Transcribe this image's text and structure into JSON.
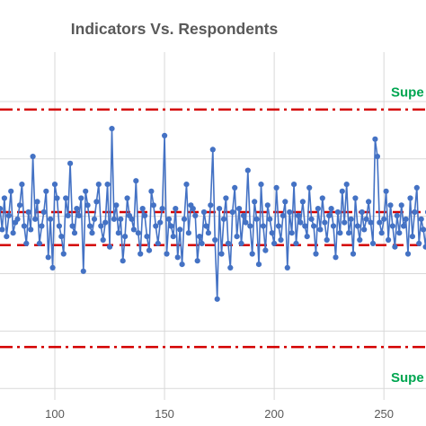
{
  "chart_data": {
    "type": "line",
    "title": "Indicators Vs. Respondents",
    "xlabel": "",
    "ylabel": "",
    "xlim": [
      75,
      270
    ],
    "ylim": [
      0,
      100
    ],
    "x_ticks": [
      100,
      150,
      200,
      250
    ],
    "x_tick_labels": [
      "100",
      "150",
      "200",
      "250"
    ],
    "y_gridlines": [
      3.3,
      19.8,
      36.3,
      52.8,
      69.3,
      85.8
    ],
    "grid": true,
    "legend": "none",
    "colors": {
      "series": "#4472c4",
      "limit_line": "#d40000",
      "annotation": "#00a651",
      "grid": "#d9d9d9"
    },
    "reference_lines": [
      {
        "name": "upper-outer",
        "y": 83.5,
        "style": "dash-dot"
      },
      {
        "name": "upper-inner",
        "y": 54.0,
        "style": "dashed"
      },
      {
        "name": "lower-inner",
        "y": 44.5,
        "style": "dashed"
      },
      {
        "name": "lower-outer",
        "y": 15.2,
        "style": "dash-dot"
      }
    ],
    "annotations": [
      {
        "name": "upper",
        "text": "Supe",
        "y": 88.5
      },
      {
        "name": "lower",
        "text": "Supe",
        "y": 6.5
      }
    ],
    "series": [
      {
        "values": [
          [
            75,
            55
          ],
          [
            76,
            49
          ],
          [
            77,
            58
          ],
          [
            78,
            47
          ],
          [
            79,
            53
          ],
          [
            80,
            60
          ],
          [
            81,
            48
          ],
          [
            82,
            51
          ],
          [
            83,
            52
          ],
          [
            84,
            56
          ],
          [
            85,
            62
          ],
          [
            86,
            50
          ],
          [
            87,
            45
          ],
          [
            88,
            54
          ],
          [
            89,
            49
          ],
          [
            90,
            70
          ],
          [
            91,
            52
          ],
          [
            92,
            57
          ],
          [
            93,
            45
          ],
          [
            94,
            50
          ],
          [
            95,
            54
          ],
          [
            96,
            60
          ],
          [
            97,
            41
          ],
          [
            98,
            52
          ],
          [
            99,
            38
          ],
          [
            100,
            62
          ],
          [
            101,
            58
          ],
          [
            102,
            50
          ],
          [
            103,
            47
          ],
          [
            104,
            42
          ],
          [
            105,
            58
          ],
          [
            106,
            53
          ],
          [
            107,
            68
          ],
          [
            108,
            50
          ],
          [
            109,
            48
          ],
          [
            110,
            55
          ],
          [
            111,
            53
          ],
          [
            112,
            58
          ],
          [
            113,
            37
          ],
          [
            114,
            60
          ],
          [
            115,
            56
          ],
          [
            116,
            50
          ],
          [
            117,
            48
          ],
          [
            118,
            52
          ],
          [
            119,
            57
          ],
          [
            120,
            62
          ],
          [
            121,
            50
          ],
          [
            122,
            46
          ],
          [
            123,
            51
          ],
          [
            124,
            62
          ],
          [
            125,
            44
          ],
          [
            126,
            78
          ],
          [
            127,
            52
          ],
          [
            128,
            56
          ],
          [
            129,
            48
          ],
          [
            130,
            52
          ],
          [
            131,
            40
          ],
          [
            132,
            47
          ],
          [
            133,
            58
          ],
          [
            134,
            53
          ],
          [
            135,
            52
          ],
          [
            136,
            49
          ],
          [
            137,
            63
          ],
          [
            138,
            48
          ],
          [
            139,
            42
          ],
          [
            140,
            55
          ],
          [
            141,
            53
          ],
          [
            142,
            47
          ],
          [
            143,
            43
          ],
          [
            144,
            60
          ],
          [
            145,
            56
          ],
          [
            146,
            50
          ],
          [
            147,
            45
          ],
          [
            148,
            51
          ],
          [
            149,
            55
          ],
          [
            150,
            76
          ],
          [
            151,
            42
          ],
          [
            152,
            52
          ],
          [
            153,
            50
          ],
          [
            154,
            47
          ],
          [
            155,
            55
          ],
          [
            156,
            41
          ],
          [
            157,
            49
          ],
          [
            158,
            39
          ],
          [
            159,
            52
          ],
          [
            160,
            62
          ],
          [
            161,
            48
          ],
          [
            162,
            56
          ],
          [
            163,
            55
          ],
          [
            164,
            53
          ],
          [
            165,
            40
          ],
          [
            166,
            47
          ],
          [
            167,
            45
          ],
          [
            168,
            54
          ],
          [
            169,
            50
          ],
          [
            170,
            48
          ],
          [
            171,
            56
          ],
          [
            172,
            72
          ],
          [
            173,
            46
          ],
          [
            174,
            29
          ],
          [
            175,
            55
          ],
          [
            176,
            42
          ],
          [
            177,
            52
          ],
          [
            178,
            58
          ],
          [
            179,
            45
          ],
          [
            180,
            38
          ],
          [
            181,
            54
          ],
          [
            182,
            61
          ],
          [
            183,
            47
          ],
          [
            184,
            55
          ],
          [
            185,
            45
          ],
          [
            186,
            53
          ],
          [
            187,
            51
          ],
          [
            188,
            66
          ],
          [
            189,
            50
          ],
          [
            190,
            42
          ],
          [
            191,
            57
          ],
          [
            192,
            52
          ],
          [
            193,
            39
          ],
          [
            194,
            62
          ],
          [
            195,
            50
          ],
          [
            196,
            43
          ],
          [
            197,
            56
          ],
          [
            198,
            52
          ],
          [
            199,
            48
          ],
          [
            200,
            45
          ],
          [
            201,
            61
          ],
          [
            202,
            50
          ],
          [
            203,
            46
          ],
          [
            204,
            53
          ],
          [
            205,
            57
          ],
          [
            206,
            38
          ],
          [
            207,
            54
          ],
          [
            208,
            48
          ],
          [
            209,
            62
          ],
          [
            210,
            45
          ],
          [
            211,
            53
          ],
          [
            212,
            51
          ],
          [
            213,
            57
          ],
          [
            214,
            50
          ],
          [
            215,
            47
          ],
          [
            216,
            61
          ],
          [
            217,
            52
          ],
          [
            218,
            50
          ],
          [
            219,
            42
          ],
          [
            220,
            55
          ],
          [
            221,
            49
          ],
          [
            222,
            58
          ],
          [
            223,
            51
          ],
          [
            224,
            46
          ],
          [
            225,
            53
          ],
          [
            226,
            55
          ],
          [
            227,
            50
          ],
          [
            228,
            41
          ],
          [
            229,
            54
          ],
          [
            230,
            48
          ],
          [
            231,
            60
          ],
          [
            232,
            51
          ],
          [
            233,
            62
          ],
          [
            234,
            48
          ],
          [
            235,
            52
          ],
          [
            236,
            42
          ],
          [
            237,
            58
          ],
          [
            238,
            50
          ],
          [
            239,
            46
          ],
          [
            240,
            54
          ],
          [
            241,
            49
          ],
          [
            242,
            52
          ],
          [
            243,
            57
          ],
          [
            244,
            51
          ],
          [
            245,
            45
          ],
          [
            246,
            75
          ],
          [
            247,
            70
          ],
          [
            248,
            51
          ],
          [
            249,
            48
          ],
          [
            250,
            52
          ],
          [
            251,
            60
          ],
          [
            252,
            46
          ],
          [
            253,
            56
          ],
          [
            254,
            50
          ],
          [
            255,
            44
          ],
          [
            256,
            53
          ],
          [
            257,
            48
          ],
          [
            258,
            56
          ],
          [
            259,
            50
          ],
          [
            260,
            52
          ],
          [
            261,
            42
          ],
          [
            262,
            58
          ],
          [
            263,
            47
          ],
          [
            264,
            54
          ],
          [
            265,
            61
          ],
          [
            266,
            45
          ],
          [
            267,
            52
          ],
          [
            268,
            49
          ],
          [
            269,
            44
          ],
          [
            270,
            54
          ]
        ]
      }
    ]
  }
}
